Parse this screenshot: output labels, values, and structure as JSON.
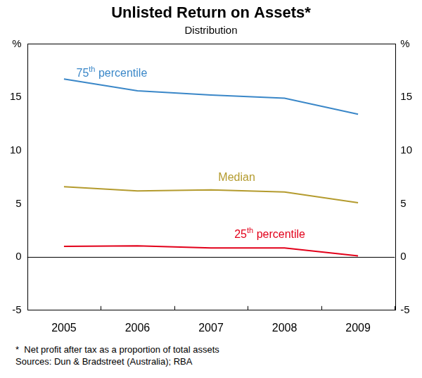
{
  "chart_data": {
    "type": "line",
    "title": "Unlisted Return on Assets*",
    "subtitle": "Distribution",
    "notes": [
      "*  Net profit after tax as a proportion of total assets",
      "Sources: Dun & Bradstreet (Australia); RBA"
    ],
    "categories": [
      "2005",
      "2006",
      "2007",
      "2008",
      "2009"
    ],
    "series": [
      {
        "name": "75th percentile",
        "color": "#3a87c8",
        "values": [
          16.7,
          15.6,
          15.2,
          14.9,
          13.4
        ]
      },
      {
        "name": "Median",
        "color": "#b49b2e",
        "values": [
          6.6,
          6.2,
          6.3,
          6.1,
          5.1
        ]
      },
      {
        "name": "25th percentile",
        "color": "#e2001a",
        "values": [
          1.0,
          1.05,
          0.85,
          0.85,
          0.1
        ]
      }
    ],
    "ylim": [
      -5,
      20
    ],
    "yticks": [
      -5,
      0,
      5,
      10,
      15,
      {
        "value": 20,
        "label": "%"
      }
    ],
    "grid": false
  }
}
